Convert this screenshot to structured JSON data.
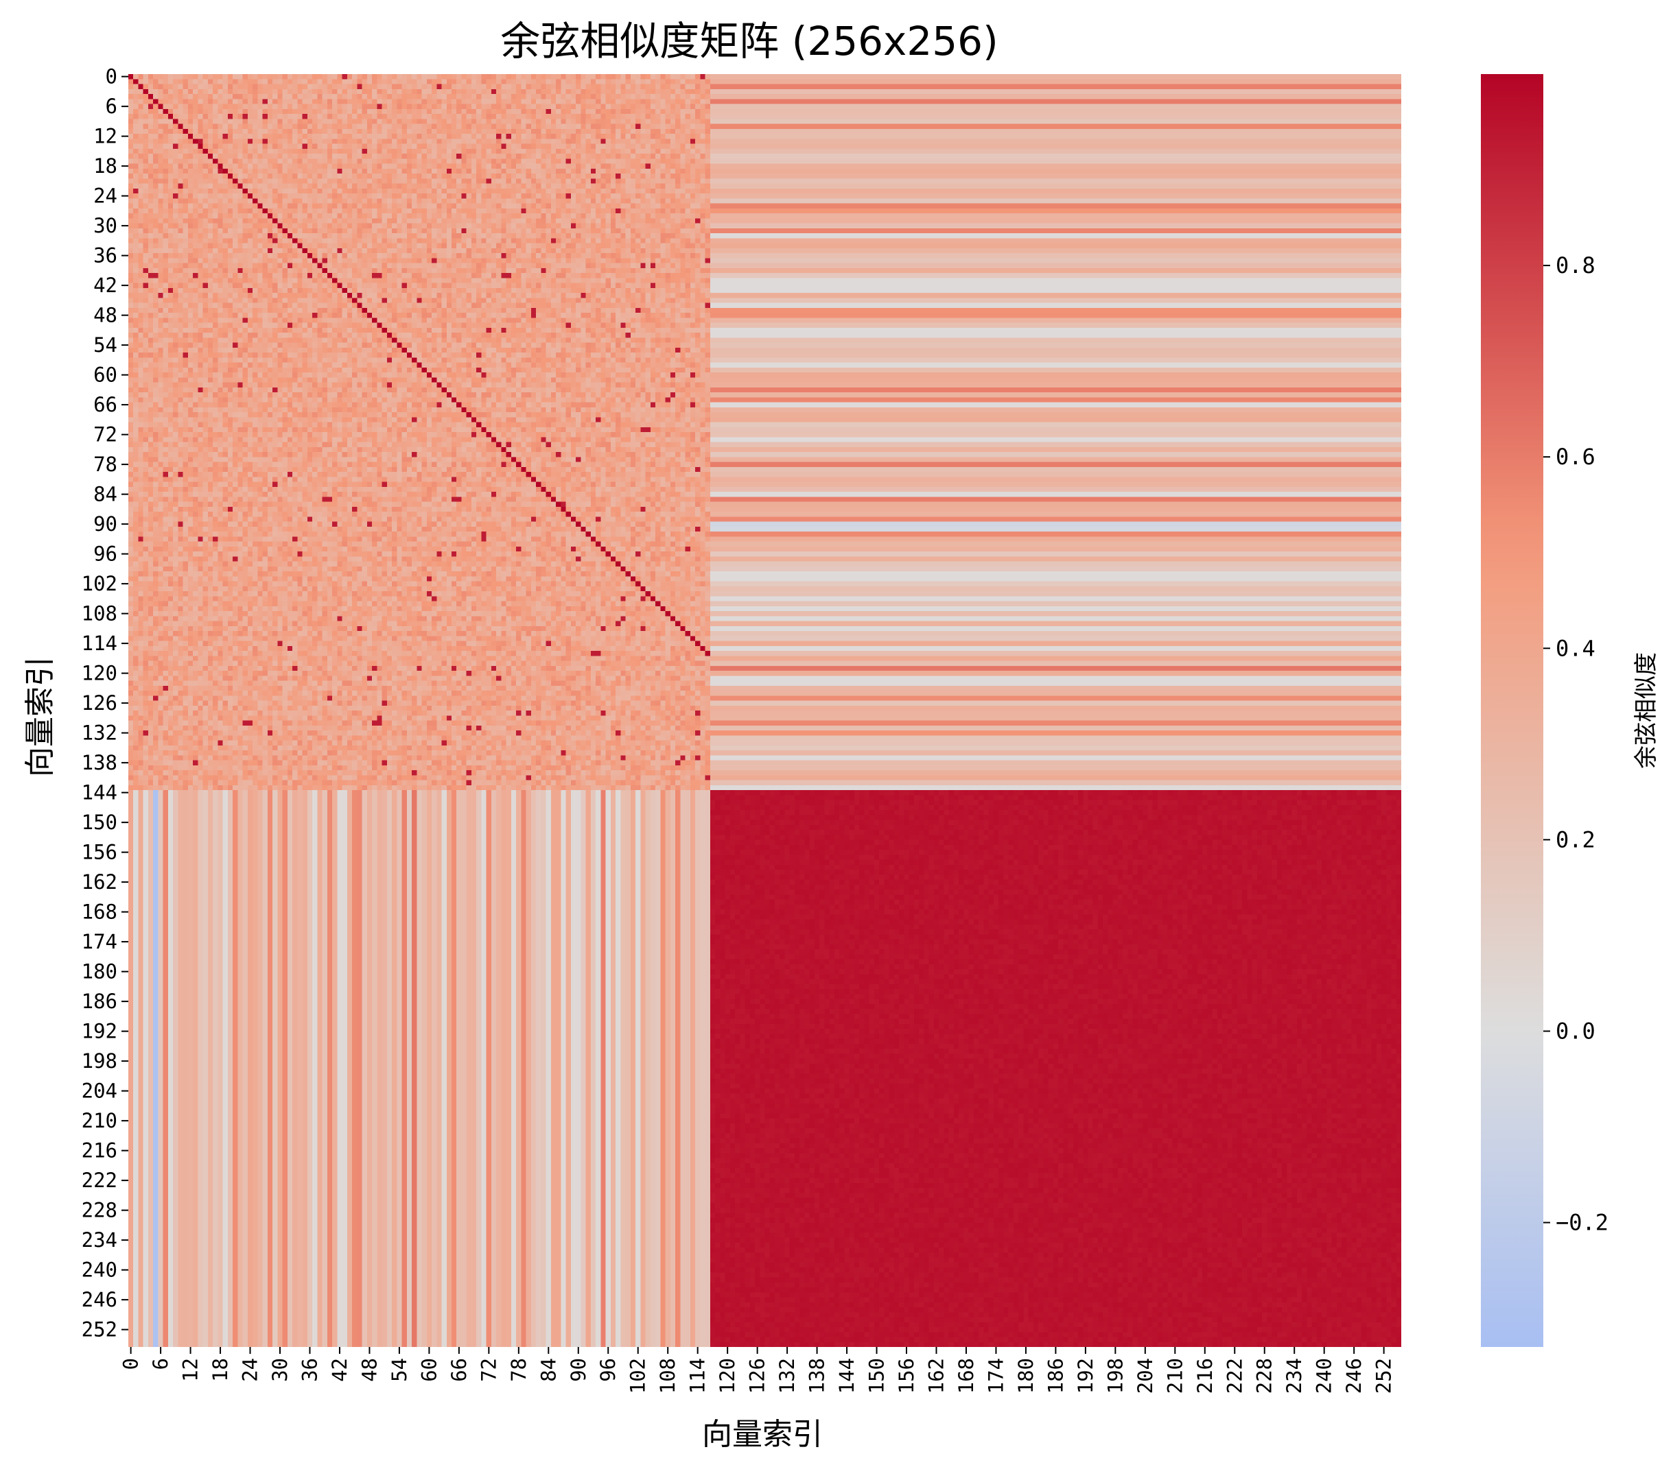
{
  "chart_data": {
    "type": "heatmap",
    "title": "余弦相似度矩阵 (256x256)",
    "xlabel": "向量索引",
    "ylabel": "向量索引",
    "size": 256,
    "tick_step": 6,
    "x_ticks": [
      "0",
      "6",
      "12",
      "18",
      "24",
      "30",
      "36",
      "42",
      "48",
      "54",
      "60",
      "66",
      "72",
      "78",
      "84",
      "90",
      "96",
      "102",
      "108",
      "114",
      "120",
      "126",
      "132",
      "138",
      "144",
      "150",
      "156",
      "162",
      "168",
      "174",
      "180",
      "186",
      "192",
      "198",
      "204",
      "210",
      "216",
      "222",
      "228",
      "234",
      "240",
      "246",
      "252"
    ],
    "y_ticks": [
      "0",
      "6",
      "12",
      "18",
      "24",
      "30",
      "36",
      "42",
      "48",
      "54",
      "60",
      "66",
      "72",
      "78",
      "84",
      "90",
      "96",
      "102",
      "108",
      "114",
      "120",
      "126",
      "132",
      "138",
      "144",
      "150",
      "156",
      "162",
      "168",
      "174",
      "180",
      "186",
      "192",
      "198",
      "204",
      "210",
      "216",
      "222",
      "228",
      "234",
      "240",
      "246",
      "252"
    ],
    "blocks": {
      "top_left": {
        "rows": [
          0,
          143
        ],
        "cols": [
          0,
          116
        ],
        "typical_value": 0.42,
        "diagonal_value": 1.0
      },
      "top_right": {
        "rows": [
          0,
          143
        ],
        "cols": [
          117,
          255
        ],
        "typical_value": 0.2
      },
      "bottom_left": {
        "rows": [
          144,
          255
        ],
        "cols": [
          0,
          116
        ],
        "typical_value": 0.2
      },
      "bottom_right": {
        "rows": [
          144,
          255
        ],
        "cols": [
          117,
          255
        ],
        "typical_value": 0.97
      }
    },
    "vmin": -0.33,
    "vmax": 1.0,
    "colormap": "coolwarm",
    "colorbar": {
      "label": "余弦相似度",
      "ticks": [
        -0.2,
        0.0,
        0.2,
        0.4,
        0.6,
        0.8
      ],
      "tick_labels": [
        "−0.2",
        "0.0",
        "0.2",
        "0.4",
        "0.6",
        "0.8"
      ]
    }
  }
}
